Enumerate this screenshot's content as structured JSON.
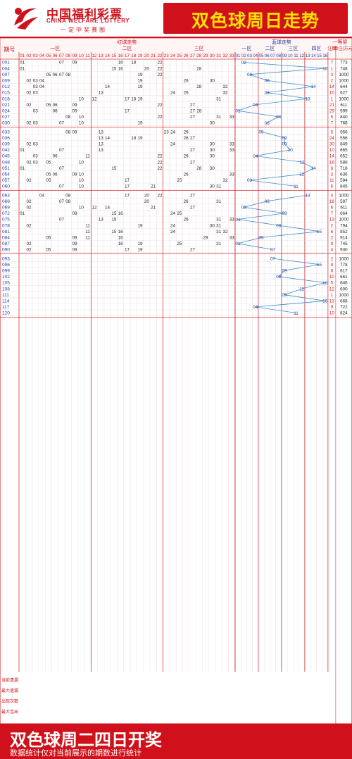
{
  "header": {
    "logo_cn": "中国福利彩票",
    "logo_en": "CHINA WELFARE LOTTERY",
    "logo_slogan": "一定中奖赛图",
    "title": "双色球周日走势"
  },
  "footer": {
    "title": "双色球周二四日开奖",
    "note": "数据统计仅对当前展示的期数进行统计"
  },
  "table": {
    "col_issue": "期号",
    "red_title": "红球走势",
    "blue_title": "蓝球走势",
    "prize_title": "一等奖",
    "red_zones": [
      "一区",
      "二区",
      "三区"
    ],
    "blue_zones": [
      "一区",
      "二区",
      "三区",
      "四区"
    ],
    "prize_headers": [
      "注数",
      "单注(万元)"
    ],
    "red_numbers": [
      "01",
      "02",
      "03",
      "04",
      "05",
      "06",
      "07",
      "08",
      "09",
      "10",
      "11",
      "12",
      "13",
      "14",
      "15",
      "16",
      "17",
      "18",
      "19",
      "20",
      "21",
      "22",
      "23",
      "24",
      "25",
      "26",
      "27",
      "28",
      "29",
      "30",
      "31",
      "32",
      "33"
    ],
    "blue_numbers": [
      "01",
      "02",
      "03",
      "04",
      "05",
      "06",
      "07",
      "08",
      "09",
      "10",
      "11",
      "12",
      "13",
      "14",
      "15",
      "16"
    ],
    "stat_labels": [
      "当前遗漏",
      "最大遗漏",
      "出现次数",
      "最大连出"
    ]
  },
  "chart_data": {
    "type": "table",
    "blocks": [
      {
        "issues": [
          "001",
          "004",
          "007",
          "009",
          "012",
          "015",
          "018",
          "021",
          "024",
          "027",
          "030"
        ],
        "blue": [
          2,
          16,
          3,
          6,
          14,
          6,
          13,
          4,
          1,
          8,
          6
        ],
        "count": [
          7,
          1,
          3,
          2,
          14,
          10,
          1,
          21,
          29,
          5,
          7
        ],
        "prize": [
          773,
          748,
          1000,
          1000,
          644,
          627,
          1000,
          611,
          599,
          840,
          768
        ],
        "red": [
          [
            1,
            7,
            9,
            16,
            18,
            22
          ],
          [
            1,
            15,
            16,
            20,
            22,
            28
          ],
          [
            5,
            6,
            7,
            8,
            19,
            22
          ],
          [
            2,
            3,
            4,
            19,
            26,
            30
          ],
          [
            3,
            4,
            14,
            19,
            28,
            32
          ],
          [
            2,
            3,
            13,
            24,
            26,
            32
          ],
          [
            10,
            12,
            17,
            18,
            19,
            31
          ],
          [
            2,
            5,
            6,
            9,
            22,
            27
          ],
          [
            3,
            6,
            9,
            17,
            27,
            28
          ],
          [
            8,
            10,
            22,
            27,
            31,
            33
          ],
          [
            2,
            3,
            7,
            10,
            19,
            30
          ]
        ]
      },
      {
        "issues": [
          "033",
          "036",
          "039",
          "042",
          "045",
          "048",
          "051",
          "054",
          "057",
          "060"
        ],
        "blue": [
          5,
          9,
          9,
          10,
          4,
          12,
          14,
          12,
          3,
          11
        ],
        "count": [
          5,
          24,
          30,
          10,
          14,
          16,
          8,
          3,
          11,
          6
        ],
        "prize": [
          956,
          556,
          849,
          665,
          652,
          588,
          718,
          636,
          594,
          845
        ],
        "red": [
          [
            8,
            9,
            13,
            23,
            24,
            26
          ],
          [
            13,
            14,
            18,
            19,
            26,
            27
          ],
          [
            2,
            3,
            13,
            24,
            30,
            33
          ],
          [
            1,
            7,
            13,
            27,
            30,
            33
          ],
          [
            3,
            6,
            11,
            22,
            26,
            30
          ],
          [
            2,
            3,
            5,
            10,
            22,
            27
          ],
          [
            1,
            7,
            15,
            22,
            28,
            30
          ],
          [
            5,
            6,
            9,
            10,
            26,
            33
          ],
          [
            2,
            5,
            10,
            17,
            25,
            32
          ],
          [
            7,
            10,
            17,
            21,
            30,
            31
          ]
        ]
      },
      {
        "issues": [
          "063",
          "066",
          "069",
          "072",
          "075",
          "078",
          "081",
          "084",
          "087",
          "090"
        ],
        "blue": [
          13,
          6,
          2,
          9,
          1,
          8,
          15,
          5,
          1,
          7
        ],
        "count": [
          4,
          18,
          6,
          7,
          13,
          2,
          6,
          2,
          9,
          4
        ],
        "prize": [
          1000,
          597,
          611,
          664,
          1000,
          794,
          852,
          914,
          745,
          930
        ],
        "red": [
          [
            4,
            8,
            17,
            20,
            22,
            27
          ],
          [
            2,
            7,
            8,
            20,
            26,
            31
          ],
          [
            2,
            10,
            12,
            14,
            21,
            27
          ],
          [
            1,
            9,
            15,
            16,
            24,
            25
          ],
          [
            7,
            13,
            15,
            26,
            31,
            33
          ],
          [
            2,
            11,
            19,
            24,
            30,
            31
          ],
          [
            11,
            15,
            16,
            24,
            31,
            32
          ],
          [
            5,
            9,
            11,
            16,
            29,
            33
          ],
          [
            2,
            9,
            16,
            19,
            25,
            31
          ],
          [
            2,
            5,
            9,
            17,
            19,
            27
          ]
        ]
      },
      {
        "issues": [
          "093",
          "096",
          "099",
          "102",
          "105",
          "108",
          "111",
          "114",
          "117",
          "120"
        ],
        "blue": [
          7,
          15,
          9,
          8,
          16,
          12,
          9,
          16,
          4,
          11
        ],
        "count": [
          2,
          8,
          8,
          10,
          5,
          12,
          1,
          13,
          9,
          10
        ],
        "prize": [
          1000,
          778,
          617,
          661,
          846,
          600,
          1000,
          668,
          722,
          824
        ]
      }
    ]
  }
}
